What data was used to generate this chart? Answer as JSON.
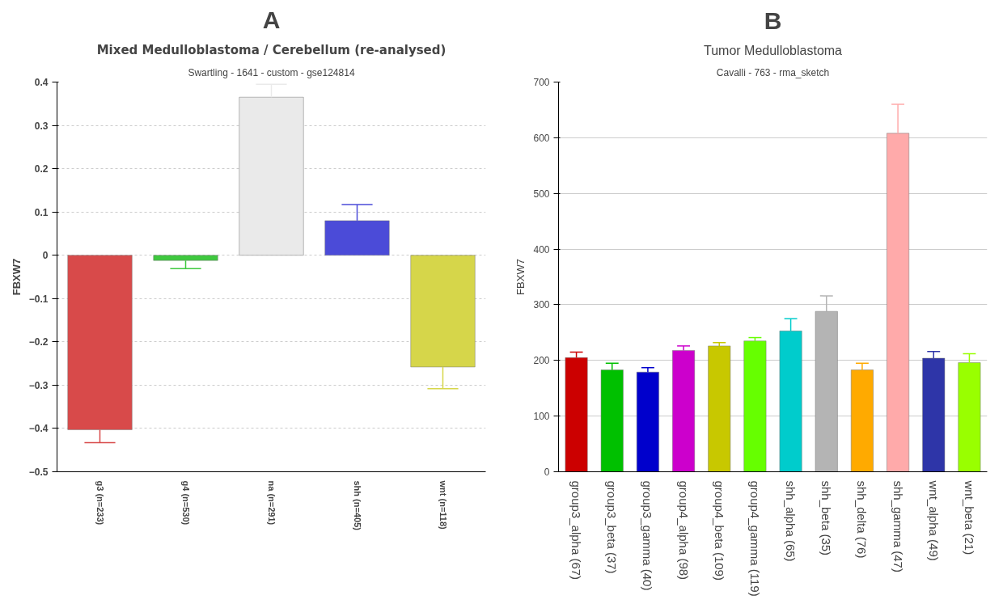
{
  "chart_data": [
    {
      "type": "bar",
      "annotations": [
        "A"
      ],
      "title": "Mixed Medulloblastoma / Cerebellum (re-analysed)",
      "subtitle": "Swartling - 1641 - custom - gse124814",
      "ylabel": "FBXW7",
      "categories": [
        "g3 (n=233)",
        "g4 (n=530)",
        "na (n=291)",
        "shh (n=405)",
        "wnt (n=118)"
      ],
      "values": [
        -0.403,
        -0.012,
        0.365,
        0.08,
        -0.258
      ],
      "errors": [
        0.03,
        0.019,
        0.03,
        0.037,
        0.05
      ],
      "colors": [
        "#d84a4a",
        "#3ec93e",
        "#eaeaea",
        "#4b4bd8",
        "#d6d64a"
      ],
      "ylim": [
        -0.5,
        0.4
      ],
      "yticks": [
        -0.5,
        -0.4,
        -0.3,
        -0.2,
        -0.1,
        0,
        0.1,
        0.2,
        0.3,
        0.4
      ],
      "grid": "y"
    },
    {
      "type": "bar",
      "annotations": [
        "B"
      ],
      "title": "Tumor Medulloblastoma",
      "subtitle": "Cavalli - 763 - rma_sketch",
      "ylabel": "FBXW7",
      "categories": [
        "group3_alpha (67)",
        "group3_beta (37)",
        "group3_gamma (40)",
        "group4_alpha (98)",
        "group4_beta (109)",
        "group4_gamma (119)",
        "shh_alpha (65)",
        "shh_beta (35)",
        "shh_delta (76)",
        "shh_gamma (47)",
        "wnt_alpha (49)",
        "wnt_beta (21)"
      ],
      "values": [
        205,
        183,
        179,
        218,
        226,
        235,
        253,
        288,
        183,
        608,
        204,
        196
      ],
      "errors": [
        10,
        12,
        8,
        8,
        6,
        6,
        22,
        28,
        12,
        52,
        12,
        16
      ],
      "colors": [
        "#cc0000",
        "#00c000",
        "#0000cc",
        "#cc00cc",
        "#c8c800",
        "#66ff00",
        "#00cccc",
        "#b4b4b4",
        "#ffaa00",
        "#ffaaaa",
        "#2e35a8",
        "#99ff00"
      ],
      "ylim": [
        0,
        700
      ],
      "yticks": [
        0,
        100,
        200,
        300,
        400,
        500,
        600,
        700
      ],
      "grid": "y"
    }
  ]
}
